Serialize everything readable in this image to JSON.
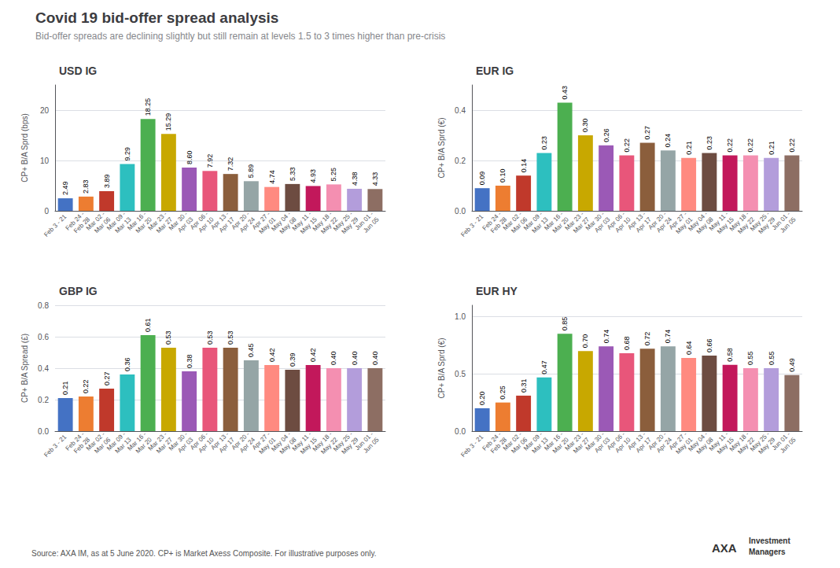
{
  "title": "Covid 19 bid-offer spread analysis",
  "subtitle": "Bid-offer spreads are declining slightly but still remain at levels 1.5 to 3 times higher than pre-crisis",
  "annotations": [
    "Source: AXA IM, as at 5 June 2020. CP+ is Market Axess Composite. For illustrative purposes only.",
    "AXA",
    "Investment",
    "Managers"
  ],
  "chart_data": [
    {
      "type": "bar",
      "title": "USD IG",
      "ylabel": "CP+ B/A Sprd (bps)",
      "categories": [
        "Feb 3 - 21",
        "Feb 24 -\nFeb 28",
        "Mar 02 -\nMar 06",
        "Mar 09 -\nMar 13",
        "Mar 16 -\nMar 20",
        "Mar 23 -\nMar 27",
        "Mar 30 -\nApr 03",
        "Apr 06 -\nApr 10",
        "Apr 13 -\nApr 17",
        "Apr 20 -\nApr 24",
        "Apr 27 -\nMay 01",
        "May 04 -\nMay 08",
        "May 11 -\nMay 15",
        "May 18 -\nMay 22",
        "May 25 -\nMay 29",
        "Jun 01 -\nJun 05"
      ],
      "values": [
        2.49,
        2.83,
        3.89,
        9.29,
        18.25,
        15.29,
        8.6,
        7.92,
        7.32,
        5.89,
        4.74,
        5.33,
        4.93,
        5.25,
        4.38,
        4.33
      ],
      "value_labels": [
        "2.49",
        "2.83",
        "3.89",
        "9.29",
        "18.25",
        "15.29",
        "8.60",
        "7.92",
        "7.32",
        "5.89",
        "4.74",
        "5.33",
        "4.93",
        "5.25",
        "4.38",
        "4.33"
      ],
      "colors": [
        "#4472c4",
        "#ed7d31",
        "#c0392b",
        "#2dbfbf",
        "#4caf50",
        "#c8a800",
        "#9b59b6",
        "#e8567a",
        "#8b5e3c",
        "#95a5a6",
        "#ff8a80",
        "#6d4c41",
        "#c2185b",
        "#f48fb1",
        "#b39ddb",
        "#8d6e63"
      ],
      "ylim": [
        0,
        25
      ],
      "yticks": [
        0,
        10,
        20
      ],
      "grid": true,
      "data_labels": true
    },
    {
      "type": "bar",
      "title": "EUR IG",
      "ylabel": "CP+ B/A Sprd (€)",
      "categories": [
        "Feb 3 - 21",
        "Feb 24 -\nFeb 28",
        "Mar 02 -\nMar 06",
        "Mar 09 -\nMar 13",
        "Mar 16 -\nMar 20",
        "Mar 23 -\nMar 27",
        "Mar 30 -\nApr 03",
        "Apr 06 -\nApr 10",
        "Apr 13 -\nApr 17",
        "Apr 20 -\nApr 24",
        "Apr 27 -\nMay 01",
        "May 04 -\nMay 08",
        "May 11 -\nMay 15",
        "May 18 -\nMay 22",
        "May 25 -\nMay 29",
        "Jun 01 -\nJun 05"
      ],
      "values": [
        0.09,
        0.1,
        0.14,
        0.23,
        0.43,
        0.3,
        0.26,
        0.22,
        0.27,
        0.24,
        0.21,
        0.23,
        0.22,
        0.22,
        0.21,
        0.22
      ],
      "value_labels": [
        "0.09",
        "0.10",
        "0.14",
        "0.23",
        "0.43",
        "0.30",
        "0.26",
        "0.22",
        "0.27",
        "0.24",
        "0.21",
        "0.23",
        "0.22",
        "0.22",
        "0.21",
        "0.22"
      ],
      "colors": [
        "#4472c4",
        "#ed7d31",
        "#c0392b",
        "#2dbfbf",
        "#4caf50",
        "#c8a800",
        "#9b59b6",
        "#e8567a",
        "#8b5e3c",
        "#95a5a6",
        "#ff8a80",
        "#6d4c41",
        "#c2185b",
        "#f48fb1",
        "#b39ddb",
        "#8d6e63"
      ],
      "ylim": [
        0,
        0.5
      ],
      "yticks": [
        {
          "value": 0,
          "label": "0.0"
        },
        0.2,
        0.4
      ],
      "grid": true,
      "data_labels": true
    },
    {
      "type": "bar",
      "title": "GBP IG",
      "ylabel": "CP+ B/A Spread (£)",
      "categories": [
        "Feb 3 - 21",
        "Feb 24 -\nFeb 28",
        "Mar 02 -\nMar 06",
        "Mar 09 -\nMar 13",
        "Mar 16 -\nMar 20",
        "Mar 23 -\nMar 27",
        "Mar 30 -\nApr 03",
        "Apr 06 -\nApr 10",
        "Apr 13 -\nApr 17",
        "Apr 20 -\nApr 24",
        "Apr 27 -\nMay 01",
        "May 04 -\nMay 08",
        "May 11 -\nMay 15",
        "May 18 -\nMay 22",
        "May 25 -\nMay 29",
        "Jun 01 -\nJun 05"
      ],
      "values": [
        0.21,
        0.22,
        0.27,
        0.36,
        0.61,
        0.53,
        0.38,
        0.53,
        0.53,
        0.45,
        0.42,
        0.39,
        0.42,
        0.4,
        0.4,
        0.4
      ],
      "value_labels": [
        "0.21",
        "0.22",
        "0.27",
        "0.36",
        "0.61",
        "0.53",
        "0.38",
        "0.53",
        "0.53",
        "0.45",
        "0.42",
        "0.39",
        "0.42",
        "0.40",
        "0.40",
        "0.40"
      ],
      "colors": [
        "#4472c4",
        "#ed7d31",
        "#c0392b",
        "#2dbfbf",
        "#4caf50",
        "#c8a800",
        "#9b59b6",
        "#e8567a",
        "#8b5e3c",
        "#95a5a6",
        "#ff8a80",
        "#6d4c41",
        "#c2185b",
        "#f48fb1",
        "#b39ddb",
        "#8d6e63"
      ],
      "ylim": [
        0,
        0.8
      ],
      "yticks": [
        {
          "value": 0,
          "label": "0.0"
        },
        0.2,
        0.4,
        0.6,
        0.8
      ],
      "grid": true,
      "data_labels": true
    },
    {
      "type": "bar",
      "title": "EUR HY",
      "ylabel": "CP+ B/A Sprd (€)",
      "categories": [
        "Feb 3 - 21",
        "Feb 24 -\nFeb 28",
        "Mar 02 -\nMar 06",
        "Mar 09 -\nMar 13",
        "Mar 16 -\nMar 20",
        "Mar 23 -\nMar 27",
        "Mar 30 -\nApr 03",
        "Apr 06 -\nApr 10",
        "Apr 13 -\nApr 17",
        "Apr 20 -\nApr 24",
        "Apr 27 -\nMay 01",
        "May 04 -\nMay 08",
        "May 11 -\nMay 15",
        "May 18 -\nMay 22",
        "May 25 -\nMay 29",
        "Jun 01 -\nJun 05"
      ],
      "values": [
        0.2,
        0.25,
        0.31,
        0.47,
        0.85,
        0.7,
        0.74,
        0.68,
        0.72,
        0.74,
        0.64,
        0.66,
        0.58,
        0.55,
        0.55,
        0.49
      ],
      "value_labels": [
        "0.20",
        "0.25",
        "0.31",
        "0.47",
        "0.85",
        "0.70",
        "0.74",
        "0.68",
        "0.72",
        "0.74",
        "0.64",
        "0.66",
        "0.58",
        "0.55",
        "0.55",
        "0.49"
      ],
      "colors": [
        "#4472c4",
        "#ed7d31",
        "#c0392b",
        "#2dbfbf",
        "#4caf50",
        "#c8a800",
        "#9b59b6",
        "#e8567a",
        "#8b5e3c",
        "#95a5a6",
        "#ff8a80",
        "#6d4c41",
        "#c2185b",
        "#f48fb1",
        "#b39ddb",
        "#8d6e63"
      ],
      "ylim": [
        0,
        1.1
      ],
      "yticks": [
        {
          "value": 0,
          "label": "0.0"
        },
        0.5,
        {
          "value": 1,
          "label": "1.0"
        }
      ],
      "grid": true,
      "data_labels": true
    }
  ]
}
